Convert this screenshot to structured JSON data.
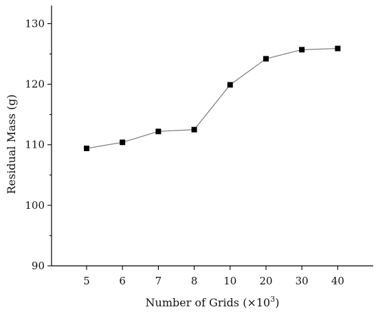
{
  "chart_data": {
    "type": "line",
    "title": "",
    "xlabel_main": "Number of Grids (×10",
    "xlabel_sup": "3",
    "xlabel_close": ")",
    "ylabel": "Residual Mass (g)",
    "categories": [
      "5",
      "6",
      "7",
      "8",
      "10",
      "20",
      "30",
      "40"
    ],
    "series": [
      {
        "values": [
          109.4,
          110.4,
          112.2,
          112.5,
          119.9,
          124.2,
          125.7,
          125.9
        ]
      }
    ],
    "ylim": [
      90,
      133
    ],
    "yticks": [
      90,
      100,
      110,
      120,
      130
    ],
    "grid": false,
    "legend": "none",
    "colors": {
      "line": "#777777",
      "marker": "#000000",
      "axis": "#000000"
    }
  }
}
